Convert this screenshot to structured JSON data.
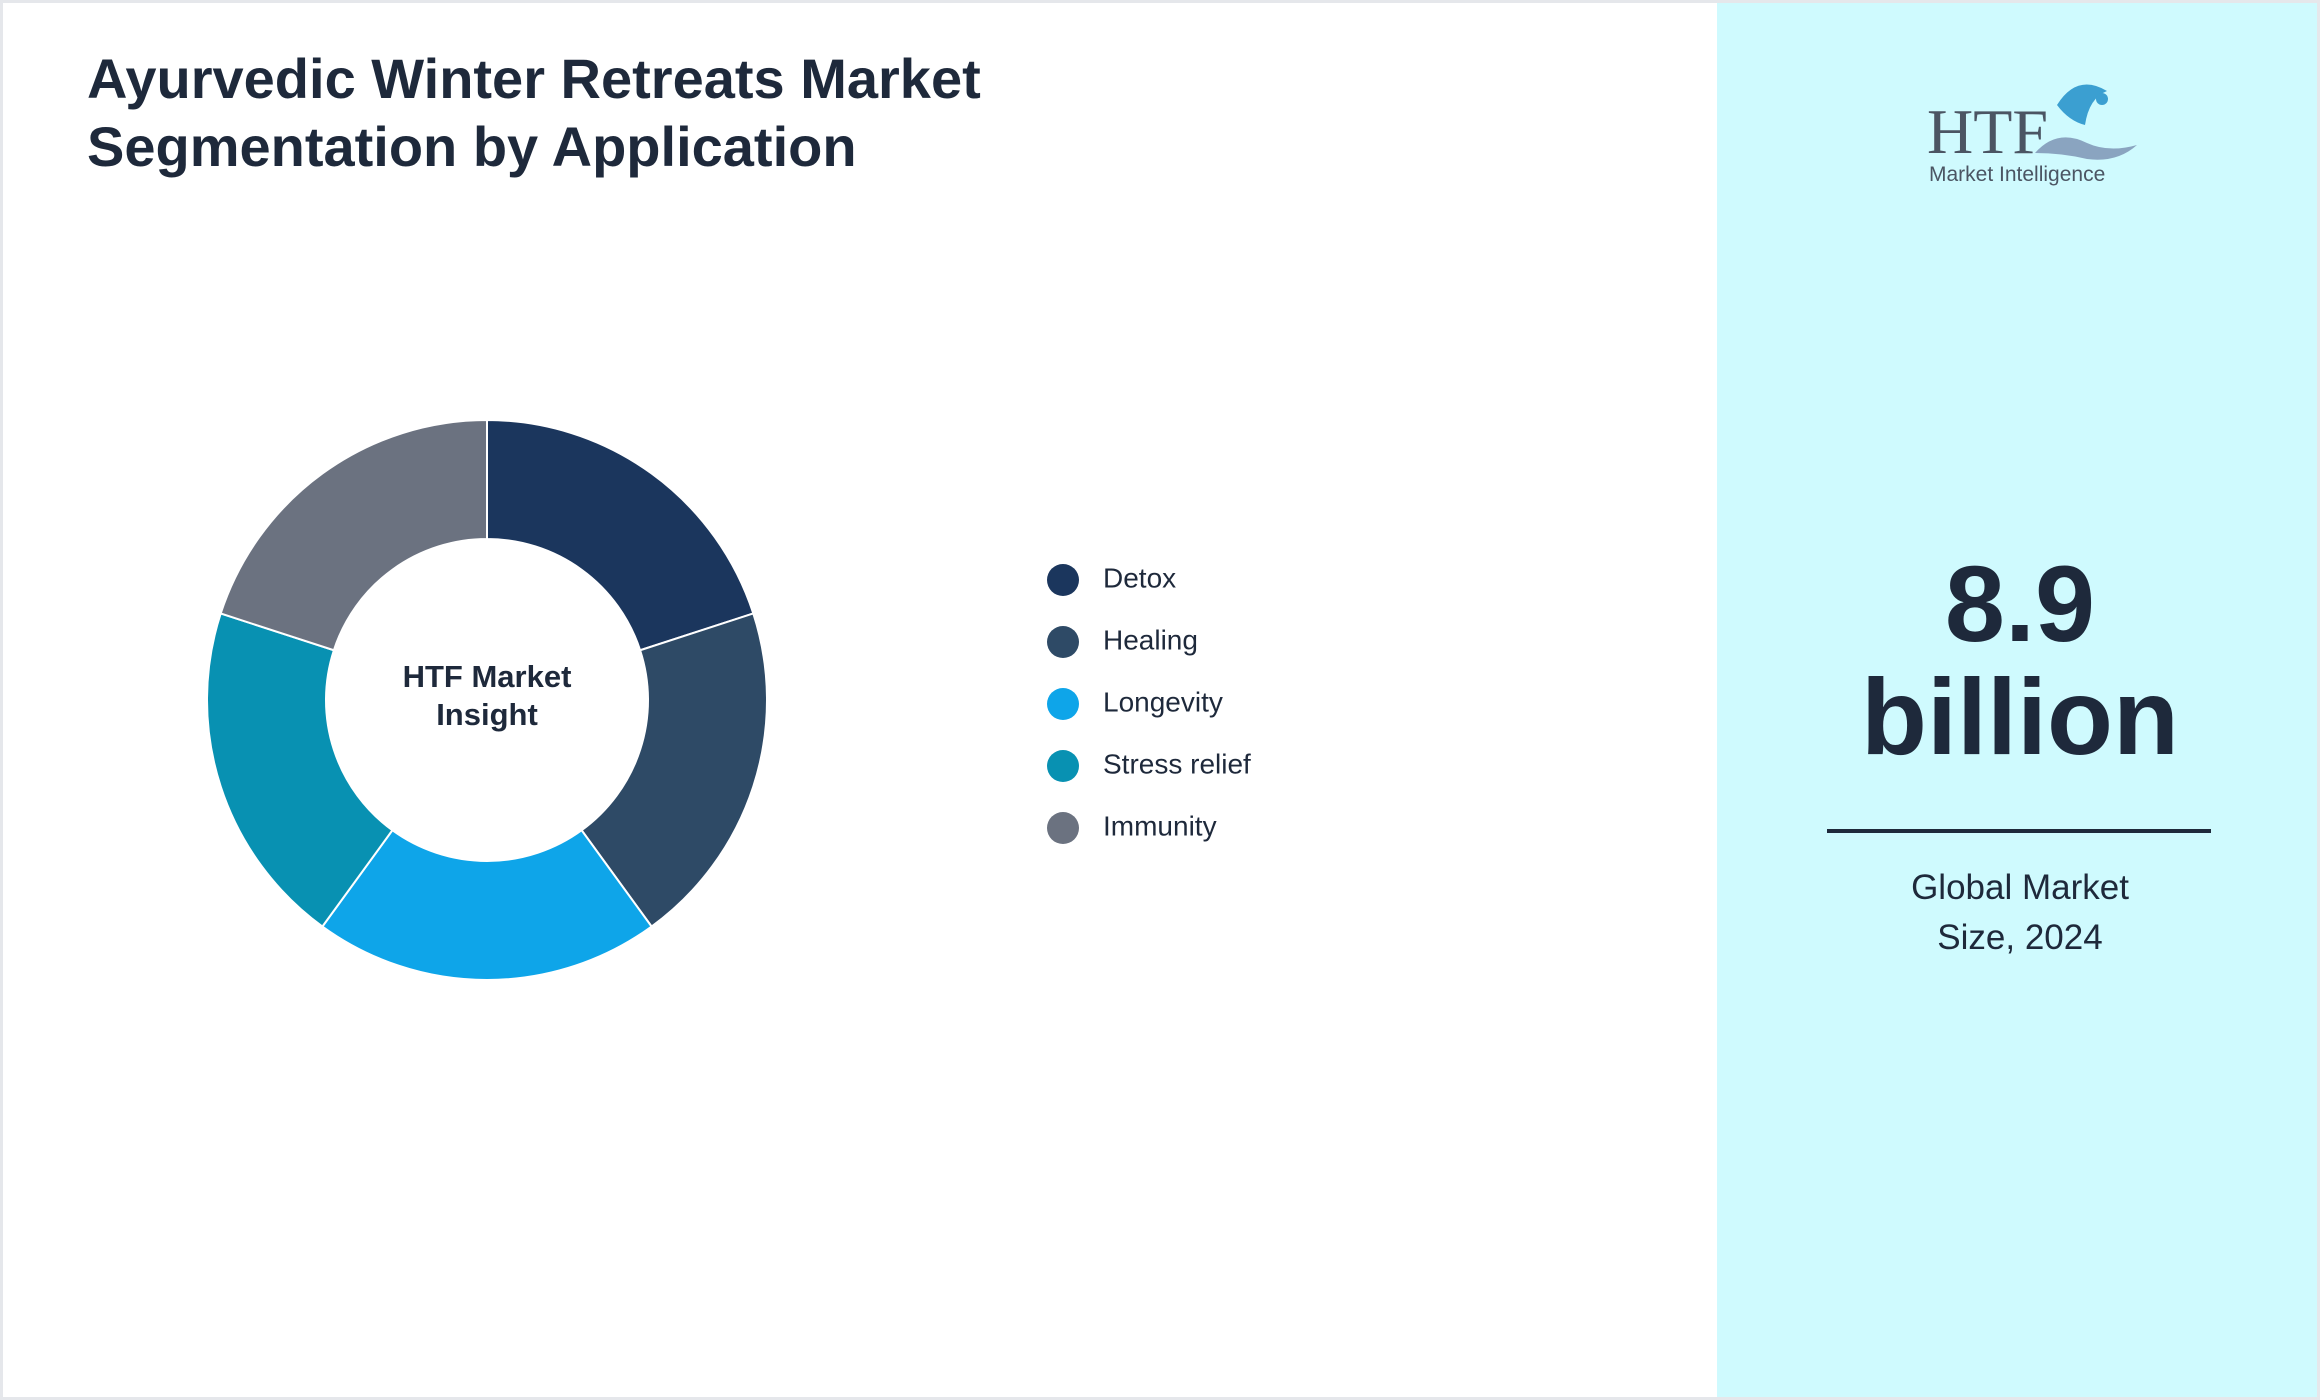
{
  "chart_data": {
    "type": "pie",
    "donut": true,
    "title": "Ayurvedic Winter Retreats Market Segmentation by Application",
    "center_label": "HTF Market Insight",
    "categories": [
      "Detox",
      "Healing",
      "Longevity",
      "Stress relief",
      "Immunity"
    ],
    "values": [
      20,
      20,
      20,
      20,
      20
    ],
    "colors": [
      "#1b365d",
      "#2e4a66",
      "#0ea5e9",
      "#0891b2",
      "#6b7280"
    ]
  },
  "side_panel": {
    "logo": {
      "brand": "HTF",
      "tagline": "Market Intelligence"
    },
    "market_size_value": "8.9",
    "market_size_unit": "billion",
    "caption": "Global Market Size, 2024"
  }
}
